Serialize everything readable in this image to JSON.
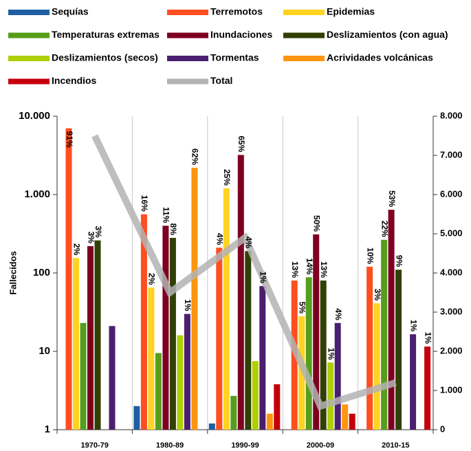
{
  "chart_data": {
    "type": "bar",
    "ylabel": "Fallecidos",
    "ylog": true,
    "grid": "x",
    "categories": [
      "1970-79",
      "1980-89",
      "1990-99",
      "2000-09",
      "2010-15"
    ],
    "ylim": [
      1,
      10000
    ],
    "yticks": [
      1,
      10,
      100,
      {
        "value": 1000,
        "label": "1.000"
      },
      {
        "value": 10000,
        "label": "10.000"
      }
    ],
    "y2lim": [
      0,
      8000
    ],
    "y2ticks": [
      0,
      {
        "value": 1000,
        "label": "1.000"
      },
      {
        "value": 2000,
        "label": "2.000"
      },
      {
        "value": 3000,
        "label": "3.000"
      },
      {
        "value": 4000,
        "label": "4.000"
      },
      {
        "value": 5000,
        "label": "5.000"
      },
      {
        "value": 6000,
        "label": "6.000"
      },
      {
        "value": 7000,
        "label": "7.000"
      },
      {
        "value": 8000,
        "label": "8.000"
      }
    ],
    "series": [
      {
        "name": "Sequías",
        "color": "#1f5ea0",
        "values": [
          null,
          2,
          1.2,
          null,
          null
        ],
        "share_labels": [
          null,
          null,
          null,
          null,
          null
        ]
      },
      {
        "name": "Terremotos",
        "color": "#ff4e1f",
        "values": [
          7000,
          560,
          210,
          80,
          120
        ],
        "share_labels": [
          "91%",
          "16%",
          "4%",
          "13%",
          "10%"
        ]
      },
      {
        "name": "Epidemias",
        "color": "#ffd320",
        "values": [
          155,
          65,
          1200,
          28,
          41
        ],
        "share_labels": [
          "2%",
          "2%",
          "25%",
          "5%",
          "3%"
        ]
      },
      {
        "name": "Temperaturas extremas",
        "color": "#579d1c",
        "values": [
          23,
          9.5,
          2.7,
          88,
          265
        ],
        "share_labels": [
          null,
          null,
          null,
          "14%",
          "22%"
        ]
      },
      {
        "name": "Inundaciones",
        "color": "#7e0021",
        "values": [
          220,
          400,
          3200,
          310,
          640
        ],
        "share_labels": [
          "3%",
          "11%",
          "65%",
          "50%",
          "53%"
        ]
      },
      {
        "name": "Deslizamientos (con agua)",
        "color": "#314004",
        "label_color": "#5b6b1c",
        "values": [
          260,
          280,
          190,
          80,
          110
        ],
        "share_labels": [
          "3%",
          "8%",
          "4%",
          "13%",
          "9%"
        ]
      },
      {
        "name": "Deslizamientos (secos)",
        "color": "#aecf00",
        "values": [
          null,
          16,
          7.5,
          7.2,
          null
        ],
        "share_labels": [
          null,
          null,
          null,
          "1%",
          null
        ]
      },
      {
        "name": "Tormentas",
        "color": "#4b1f6f",
        "values": [
          21,
          30,
          68,
          23,
          16.5
        ],
        "share_labels": [
          null,
          "1%",
          "1%",
          "4%",
          "1%"
        ]
      },
      {
        "name": "Acrividades volcánicas",
        "color": "#ff950e",
        "values": [
          null,
          2200,
          1.6,
          2.1,
          null
        ],
        "share_labels": [
          null,
          "62%",
          null,
          null,
          null
        ]
      },
      {
        "name": "Incendios",
        "color": "#c5000b",
        "values": [
          null,
          null,
          3.8,
          1.6,
          11.5
        ],
        "share_labels": [
          null,
          null,
          null,
          null,
          "1%"
        ]
      },
      {
        "name": "Total",
        "type": "line",
        "axis": "y2",
        "color": "#b3b3b3",
        "values": [
          7500,
          3500,
          4900,
          600,
          1200
        ]
      }
    ]
  }
}
